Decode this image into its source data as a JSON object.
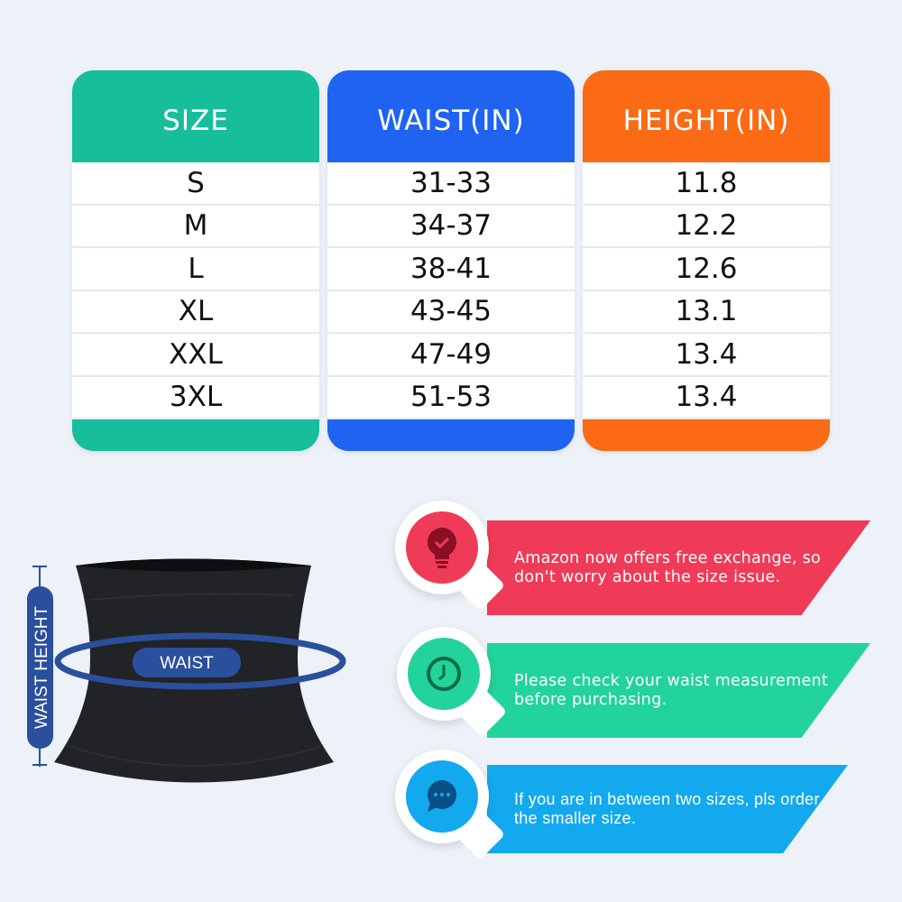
{
  "table": {
    "columns": [
      {
        "header": "SIZE",
        "color": "#17be9c",
        "values": [
          "S",
          "M",
          "L",
          "XL",
          "XXL",
          "3XL"
        ]
      },
      {
        "header": "WAIST(IN)",
        "color": "#1f63f0",
        "values": [
          "31-33",
          "34-37",
          "38-41",
          "43-45",
          "47-49",
          "51-53"
        ]
      },
      {
        "header": "HEIGHT(IN)",
        "color": "#fb6a14",
        "values": [
          "11.8",
          "12.2",
          "12.6",
          "13.1",
          "13.4",
          "13.4"
        ]
      }
    ]
  },
  "diagram": {
    "waist_label": "WAIST",
    "height_label": "WAIST HEIGHT",
    "accent": "#2a4f9c"
  },
  "tips": [
    {
      "icon": "lightbulb-check-icon",
      "text": "Amazon now offers free exchange, so don't worry about the size issue.",
      "color": "#ef3b57",
      "dark": "#8a0f25"
    },
    {
      "icon": "clock-icon",
      "text": "Please check your waist measurement before purchasing.",
      "color": "#22d39c",
      "dark": "#0a6b45"
    },
    {
      "icon": "chat-bubble-icon",
      "text": "If you are in between two sizes, pls order the smaller size.",
      "color": "#12a9ee",
      "dark": "#0a4f86"
    }
  ]
}
